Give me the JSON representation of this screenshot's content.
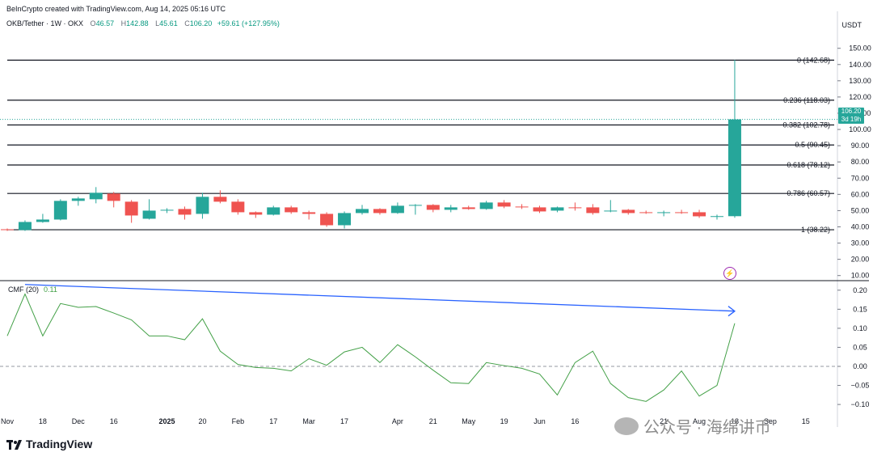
{
  "header": {
    "creator_line": "BeInCrypto created with TradingView.com, Aug 14, 2025 05:16 UTC",
    "symbol": "OKB/Tether · 1W · OKX",
    "open_label": "O",
    "open": "46.57",
    "high_label": "H",
    "high": "142.88",
    "low_label": "L",
    "low": "45.61",
    "close_label": "C",
    "close": "106.20",
    "change": "+59.61 (+127.95%)"
  },
  "price_axis": {
    "unit": "USDT"
  },
  "price_tag": {
    "price": "106.20",
    "countdown": "3d 19h"
  },
  "cmf": {
    "label": "CMF (20)",
    "value": "0.11"
  },
  "brand": "TradingView",
  "watermark": "公众号 · 海绵讲币",
  "colors": {
    "up": "#26a69a",
    "down": "#ef5350",
    "cmf": "#43a047",
    "trend": "#2962ff",
    "fib": "#131722",
    "event": "#9c27b0"
  },
  "chart_data": [
    {
      "type": "candlestick",
      "title": "OKB/Tether · 1W · OKX",
      "ylabel": "USDT",
      "ylim": [
        10,
        150
      ],
      "yticks": [
        10,
        20,
        30,
        40,
        50,
        60,
        70,
        80,
        90,
        100,
        110,
        120,
        130,
        140,
        150
      ],
      "x_tick_labels": [
        "Nov",
        "18",
        "Dec",
        "16",
        "2025",
        "20",
        "Feb",
        "17",
        "Mar",
        "17",
        "Apr",
        "21",
        "May",
        "19",
        "Jun",
        "16",
        "Jul",
        "21",
        "Aug",
        "18",
        "Sep",
        "15"
      ],
      "x_tick_weeks": [
        0,
        2,
        4,
        6,
        9,
        11,
        13,
        15,
        17,
        19,
        22,
        24,
        26,
        28,
        30,
        32,
        35,
        37,
        39,
        41,
        43,
        45
      ],
      "candles": [
        {
          "o": 38.5,
          "h": 39.0,
          "l": 37.5,
          "c": 38.0
        },
        {
          "o": 38.0,
          "h": 44.0,
          "l": 37.5,
          "c": 43.0
        },
        {
          "o": 43.0,
          "h": 48.0,
          "l": 42.5,
          "c": 44.5
        },
        {
          "o": 44.5,
          "h": 57.0,
          "l": 44.0,
          "c": 56.0
        },
        {
          "o": 56.0,
          "h": 58.5,
          "l": 53.0,
          "c": 57.5
        },
        {
          "o": 57.0,
          "h": 64.5,
          "l": 54.5,
          "c": 61.0
        },
        {
          "o": 60.5,
          "h": 61.5,
          "l": 52.0,
          "c": 56.0
        },
        {
          "o": 55.5,
          "h": 56.5,
          "l": 42.5,
          "c": 47.0
        },
        {
          "o": 45.0,
          "h": 57.0,
          "l": 44.5,
          "c": 50.0
        },
        {
          "o": 50.0,
          "h": 51.5,
          "l": 48.5,
          "c": 50.5
        },
        {
          "o": 51.0,
          "h": 52.5,
          "l": 44.5,
          "c": 47.5
        },
        {
          "o": 48.0,
          "h": 61.0,
          "l": 45.0,
          "c": 58.5
        },
        {
          "o": 58.5,
          "h": 62.5,
          "l": 54.5,
          "c": 55.5
        },
        {
          "o": 55.5,
          "h": 57.0,
          "l": 47.5,
          "c": 49.0
        },
        {
          "o": 49.0,
          "h": 49.5,
          "l": 45.5,
          "c": 47.5
        },
        {
          "o": 47.5,
          "h": 53.0,
          "l": 47.0,
          "c": 52.0
        },
        {
          "o": 52.0,
          "h": 53.0,
          "l": 48.0,
          "c": 49.0
        },
        {
          "o": 49.0,
          "h": 50.0,
          "l": 44.5,
          "c": 48.0
        },
        {
          "o": 48.0,
          "h": 49.0,
          "l": 40.0,
          "c": 41.0
        },
        {
          "o": 41.0,
          "h": 49.5,
          "l": 39.0,
          "c": 48.5
        },
        {
          "o": 48.5,
          "h": 53.5,
          "l": 47.5,
          "c": 51.0
        },
        {
          "o": 51.0,
          "h": 51.5,
          "l": 47.5,
          "c": 48.5
        },
        {
          "o": 48.5,
          "h": 55.0,
          "l": 48.0,
          "c": 53.0
        },
        {
          "o": 53.0,
          "h": 54.0,
          "l": 47.5,
          "c": 53.5
        },
        {
          "o": 53.5,
          "h": 54.0,
          "l": 49.0,
          "c": 50.5
        },
        {
          "o": 50.5,
          "h": 53.5,
          "l": 49.0,
          "c": 52.0
        },
        {
          "o": 52.0,
          "h": 53.0,
          "l": 50.5,
          "c": 51.0
        },
        {
          "o": 51.0,
          "h": 56.0,
          "l": 50.5,
          "c": 55.0
        },
        {
          "o": 55.0,
          "h": 56.5,
          "l": 51.5,
          "c": 52.5
        },
        {
          "o": 52.5,
          "h": 54.0,
          "l": 51.0,
          "c": 52.0
        },
        {
          "o": 52.0,
          "h": 53.0,
          "l": 48.5,
          "c": 49.5
        },
        {
          "o": 50.0,
          "h": 52.5,
          "l": 49.0,
          "c": 52.0
        },
        {
          "o": 52.0,
          "h": 55.0,
          "l": 50.0,
          "c": 51.5
        },
        {
          "o": 52.0,
          "h": 54.0,
          "l": 47.5,
          "c": 48.5
        },
        {
          "o": 50.0,
          "h": 56.5,
          "l": 49.0,
          "c": 50.0
        },
        {
          "o": 50.5,
          "h": 51.0,
          "l": 47.5,
          "c": 48.5
        },
        {
          "o": 49.0,
          "h": 50.0,
          "l": 48.0,
          "c": 48.5
        },
        {
          "o": 48.5,
          "h": 50.0,
          "l": 46.5,
          "c": 49.0
        },
        {
          "o": 49.0,
          "h": 50.5,
          "l": 48.0,
          "c": 48.5
        },
        {
          "o": 49.0,
          "h": 50.5,
          "l": 45.5,
          "c": 46.5
        },
        {
          "o": 46.5,
          "h": 47.5,
          "l": 44.5,
          "c": 46.6
        },
        {
          "o": 46.57,
          "h": 142.88,
          "l": 45.61,
          "c": 106.2
        }
      ],
      "last_price": 106.2,
      "fib_levels": [
        {
          "label": "0 (142.68)",
          "value": 142.68
        },
        {
          "label": "0.236 (118.03)",
          "value": 118.03
        },
        {
          "label": "0.382 (102.78)",
          "value": 102.78
        },
        {
          "label": "0.5 (90.45)",
          "value": 90.45
        },
        {
          "label": "0.618 (78.12)",
          "value": 78.12
        },
        {
          "label": "0.786 (60.57)",
          "value": 60.57
        },
        {
          "label": "1 (38.22)",
          "value": 38.22
        }
      ]
    },
    {
      "type": "line",
      "title": "CMF (20)",
      "ylim": [
        -0.115,
        0.225
      ],
      "yticks": [
        0.2,
        0.15,
        0.1,
        0.05,
        0.0,
        -0.05,
        -0.1
      ],
      "ytick_labels": [
        "0.20",
        "0.15",
        "0.10",
        "0.05",
        "0.00",
        "−0.05",
        "−0.10"
      ],
      "zero_line": true,
      "series": [
        {
          "values": [
            0.08,
            0.19,
            0.08,
            0.165,
            0.155,
            0.157,
            0.14,
            0.122,
            0.08,
            0.08,
            0.07,
            0.125,
            0.04,
            0.005,
            -0.003,
            -0.005,
            -0.012,
            0.02,
            0.003,
            0.038,
            0.05,
            0.01,
            0.057,
            0.025,
            -0.01,
            -0.043,
            -0.045,
            0.01,
            0.002,
            -0.005,
            -0.02,
            -0.075,
            0.01,
            0.04,
            -0.045,
            -0.082,
            -0.092,
            -0.062,
            -0.012,
            -0.078,
            -0.05,
            0.113
          ]
        }
      ],
      "trendline": {
        "from": {
          "week": 1,
          "value": 0.215
        },
        "to": {
          "week": 41,
          "value": 0.145
        }
      }
    }
  ]
}
